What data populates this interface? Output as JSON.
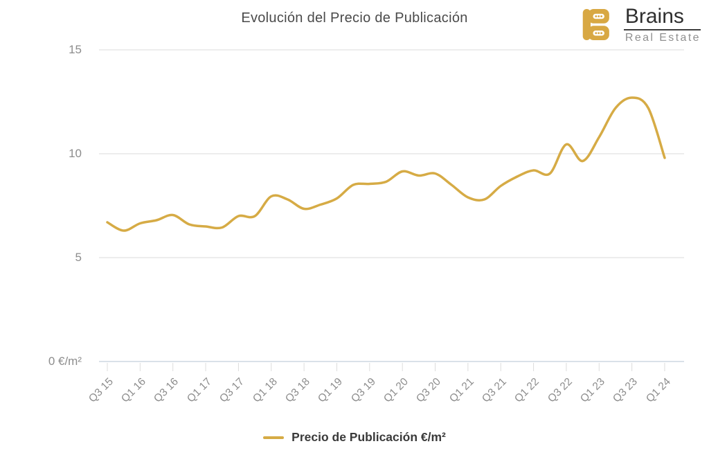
{
  "title": "Evolución del Precio de Publicación",
  "logo": {
    "brand": "Brains",
    "subtitle": "Real Estate"
  },
  "legend": {
    "label": "Precio de Publicación €/m²"
  },
  "colors": {
    "line": "#d6ab45",
    "logo_gold": "#d8a843",
    "grid": "#ededed",
    "axis_line": "#d9e1e8",
    "tick": "#dcdcdc",
    "title_text": "#4a4a4a",
    "axis_text": "#8c8c8c",
    "legend_text": "#3a3a3a"
  },
  "y_axis": {
    "ticks": [
      "15",
      "10",
      "5",
      "0 €/m²"
    ],
    "values": [
      15,
      10,
      5,
      0
    ]
  },
  "x_axis": {
    "labels": [
      "Q3 15",
      "Q1 16",
      "Q3 16",
      "Q1 17",
      "Q3 17",
      "Q1 18",
      "Q3 18",
      "Q1 19",
      "Q3 19",
      "Q1 20",
      "Q3 20",
      "Q1 21",
      "Q3 21",
      "Q1 22",
      "Q3 22",
      "Q1 23",
      "Q3 23",
      "Q1 24"
    ]
  },
  "chart_data": {
    "type": "line",
    "title": "Evolución del Precio de Publicación",
    "xlabel": "",
    "ylabel": "€/m²",
    "ylim": [
      0,
      15
    ],
    "grid": true,
    "legend_position": "bottom",
    "smooth": true,
    "x": [
      "Q3 15",
      "Q4 15",
      "Q1 16",
      "Q2 16",
      "Q3 16",
      "Q4 16",
      "Q1 17",
      "Q2 17",
      "Q3 17",
      "Q4 17",
      "Q1 18",
      "Q2 18",
      "Q3 18",
      "Q4 18",
      "Q1 19",
      "Q2 19",
      "Q3 19",
      "Q4 19",
      "Q1 20",
      "Q2 20",
      "Q3 20",
      "Q4 20",
      "Q1 21",
      "Q2 21",
      "Q3 21",
      "Q4 21",
      "Q1 22",
      "Q2 22",
      "Q3 22",
      "Q4 22",
      "Q1 23",
      "Q2 23",
      "Q3 23",
      "Q4 23",
      "Q1 24"
    ],
    "series": [
      {
        "name": "Precio de Publicación €/m²",
        "values": [
          6.7,
          6.3,
          6.65,
          6.8,
          7.05,
          6.6,
          6.5,
          6.45,
          7.0,
          7.0,
          7.95,
          7.8,
          7.35,
          7.55,
          7.85,
          8.5,
          8.55,
          8.65,
          9.15,
          8.95,
          9.05,
          8.5,
          7.9,
          7.8,
          8.45,
          8.9,
          9.2,
          9.05,
          10.45,
          9.65,
          10.8,
          12.2,
          12.7,
          12.2,
          9.8
        ]
      }
    ]
  }
}
